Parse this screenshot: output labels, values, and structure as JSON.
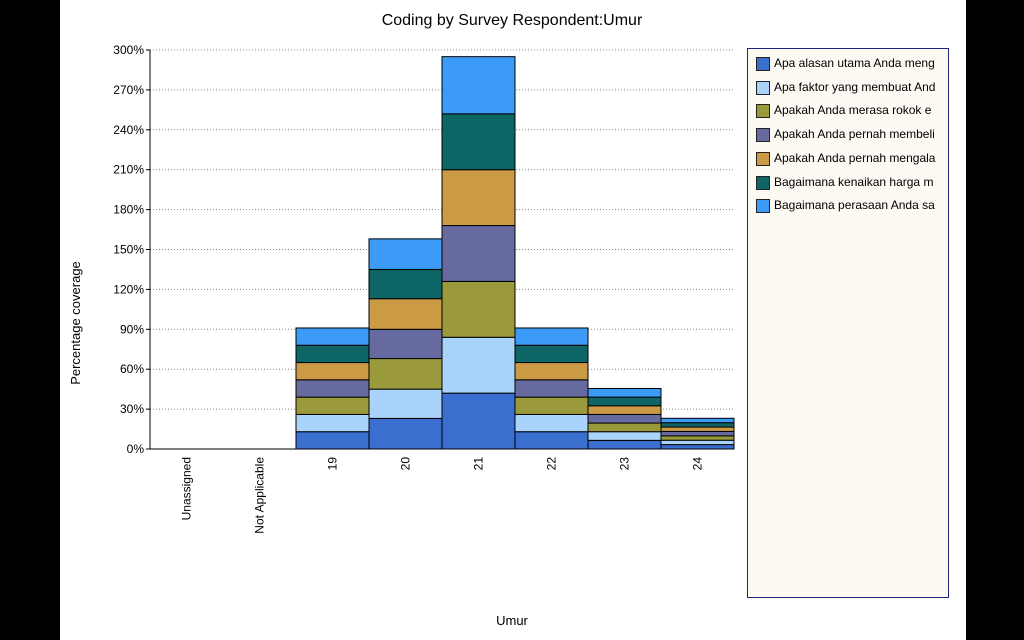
{
  "chart_data": {
    "type": "bar",
    "stacked": true,
    "title": "Coding by Survey Respondent:Umur",
    "xlabel": "Umur",
    "ylabel": "Percentage coverage",
    "ylim": [
      0,
      300
    ],
    "yticks": [
      "0%",
      "30%",
      "60%",
      "90%",
      "120%",
      "150%",
      "180%",
      "210%",
      "240%",
      "270%",
      "300%"
    ],
    "ytick_values": [
      0,
      30,
      60,
      90,
      120,
      150,
      180,
      210,
      240,
      270,
      300
    ],
    "categories": [
      "Unassigned",
      "Not Applicable",
      "19",
      "20",
      "21",
      "22",
      "23",
      "24"
    ],
    "series": [
      {
        "name": "Apa alasan utama Anda meng",
        "color": "#3a6fd0",
        "values": [
          0,
          0,
          13,
          23,
          42,
          13,
          6.5,
          3.3
        ]
      },
      {
        "name": "Apa faktor yang membuat And",
        "color": "#a9d3fa",
        "values": [
          0,
          0,
          13,
          22,
          42,
          13,
          6.5,
          3.3
        ]
      },
      {
        "name": "Apakah Anda merasa rokok e",
        "color": "#9a9a3c",
        "values": [
          0,
          0,
          13,
          23,
          42,
          13,
          6.5,
          3.3
        ]
      },
      {
        "name": "Apakah Anda pernah membeli",
        "color": "#676a9e",
        "values": [
          0,
          0,
          13,
          22,
          42,
          13,
          6.5,
          3.3
        ]
      },
      {
        "name": "Apakah Anda pernah mengala",
        "color": "#cb9a44",
        "values": [
          0,
          0,
          13,
          23,
          42,
          13,
          6.5,
          3.3
        ]
      },
      {
        "name": "Bagaimana kenaikan harga m",
        "color": "#0e6565",
        "values": [
          0,
          0,
          13,
          22,
          42,
          13,
          6.5,
          3.3
        ]
      },
      {
        "name": "Bagaimana perasaan Anda sa",
        "color": "#3b9bf6",
        "values": [
          0,
          0,
          13,
          23,
          43,
          13,
          6.5,
          3.3
        ]
      }
    ],
    "grid": true,
    "legend": "right"
  }
}
